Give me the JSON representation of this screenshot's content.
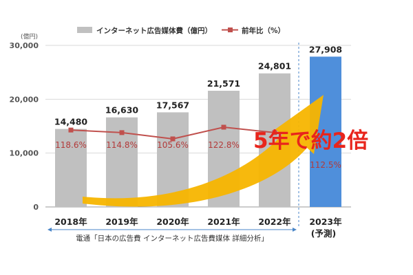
{
  "unit_label": "(億円)",
  "legend": {
    "bar": "インターネット広告媒体費（億円）",
    "line": "前年比（%）"
  },
  "source": "電通「日本の広告費 インターネット広告費媒体 詳細分析」",
  "forecast_note": "(予測)",
  "callout": "5年で約2倍",
  "colors": {
    "bar": "#c0c0c0",
    "forecast_bar": "#4f8fdb",
    "line": "#c0504d",
    "arrow": "#f7b500",
    "callout": "#e8251c",
    "axis_arrow": "#4a86c8"
  },
  "chart_data": {
    "type": "bar",
    "categories": [
      "2018年",
      "2019年",
      "2020年",
      "2021年",
      "2022年",
      "2023年"
    ],
    "series": [
      {
        "name": "インターネット広告媒体費（億円）",
        "type": "bar",
        "values": [
          14480,
          16630,
          17567,
          21571,
          24801,
          27908
        ],
        "labels": [
          "14,480",
          "16,630",
          "17,567",
          "21,571",
          "24,801",
          "27,908"
        ]
      },
      {
        "name": "前年比（%）",
        "type": "line",
        "values": [
          118.6,
          114.8,
          105.6,
          122.8,
          114.8,
          112.5
        ],
        "labels": [
          "118.6%",
          "114.8%",
          "105.6%",
          "122.8%",
          "",
          "112.5%"
        ]
      }
    ],
    "forecast_index": 5,
    "y_ticks": [
      "0",
      "10,000",
      "20,000",
      "30,000"
    ],
    "ylim": [
      0,
      30000
    ],
    "grid": true
  }
}
